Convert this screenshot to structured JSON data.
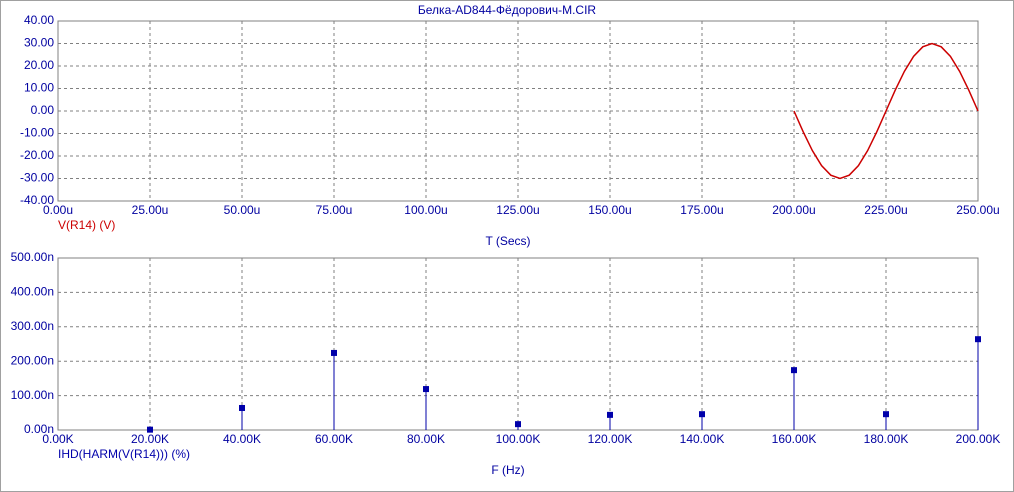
{
  "title": "Белка-AD844-Фёдорович-M.CIR",
  "chart_data": [
    {
      "type": "line",
      "x_label": "T (Secs)",
      "x": [
        200,
        202.5,
        205,
        207.5,
        210,
        212.5,
        215,
        217.5,
        220,
        222.5,
        225,
        227.5,
        230,
        232.5,
        235,
        237.5,
        240,
        242.5,
        245,
        247.5,
        250
      ],
      "series": [
        {
          "name": "V(R14) (V)",
          "color": "#cc0000",
          "values": [
            0,
            -9.27,
            -17.63,
            -24.27,
            -28.53,
            -30,
            -28.53,
            -24.27,
            -17.63,
            -9.27,
            0,
            9.27,
            17.63,
            24.27,
            28.53,
            30,
            28.53,
            24.27,
            17.63,
            9.27,
            0
          ]
        }
      ],
      "xlim": [
        0,
        250
      ],
      "xticks": [
        {
          "value": 0,
          "label": "0.00u"
        },
        {
          "value": 25,
          "label": "25.00u"
        },
        {
          "value": 50,
          "label": "50.00u"
        },
        {
          "value": 75,
          "label": "75.00u"
        },
        {
          "value": 100,
          "label": "100.00u"
        },
        {
          "value": 125,
          "label": "125.00u"
        },
        {
          "value": 150,
          "label": "150.00u"
        },
        {
          "value": 175,
          "label": "175.00u"
        },
        {
          "value": 200,
          "label": "200.00u"
        },
        {
          "value": 225,
          "label": "225.00u"
        },
        {
          "value": 250,
          "label": "250.00u"
        }
      ],
      "ylim": [
        -40,
        40
      ],
      "yticks": [
        {
          "value": 40,
          "label": "40.00"
        },
        {
          "value": 30,
          "label": "30.00"
        },
        {
          "value": 20,
          "label": "20.00"
        },
        {
          "value": 10,
          "label": "10.00"
        },
        {
          "value": 0,
          "label": "0.00"
        },
        {
          "value": -10,
          "label": "-10.00"
        },
        {
          "value": -20,
          "label": "-20.00"
        },
        {
          "value": -30,
          "label": "-30.00"
        },
        {
          "value": -40,
          "label": "-40.00"
        }
      ],
      "grid": true
    },
    {
      "type": "stem",
      "x_label": "F (Hz)",
      "x": [
        20,
        40,
        60,
        80,
        100,
        120,
        140,
        160,
        180,
        200
      ],
      "series": [
        {
          "name": "IHD(HARM(V(R14))) (%)",
          "color": "#0000aa",
          "values": [
            1,
            64,
            224,
            119,
            17,
            44,
            46,
            174,
            46,
            264
          ]
        }
      ],
      "xlim": [
        0,
        200
      ],
      "xticks": [
        {
          "value": 0,
          "label": "0.00K"
        },
        {
          "value": 20,
          "label": "20.00K"
        },
        {
          "value": 40,
          "label": "40.00K"
        },
        {
          "value": 60,
          "label": "60.00K"
        },
        {
          "value": 80,
          "label": "80.00K"
        },
        {
          "value": 100,
          "label": "100.00K"
        },
        {
          "value": 120,
          "label": "120.00K"
        },
        {
          "value": 140,
          "label": "140.00K"
        },
        {
          "value": 160,
          "label": "160.00K"
        },
        {
          "value": 180,
          "label": "180.00K"
        },
        {
          "value": 200,
          "label": "200.00K"
        }
      ],
      "ylim": [
        0,
        500
      ],
      "yticks": [
        {
          "value": 500,
          "label": "500.00n"
        },
        {
          "value": 400,
          "label": "400.00n"
        },
        {
          "value": 300,
          "label": "300.00n"
        },
        {
          "value": 200,
          "label": "200.00n"
        },
        {
          "value": 100,
          "label": "100.00n"
        },
        {
          "value": 0,
          "label": "0.00n"
        }
      ],
      "grid": true
    }
  ]
}
